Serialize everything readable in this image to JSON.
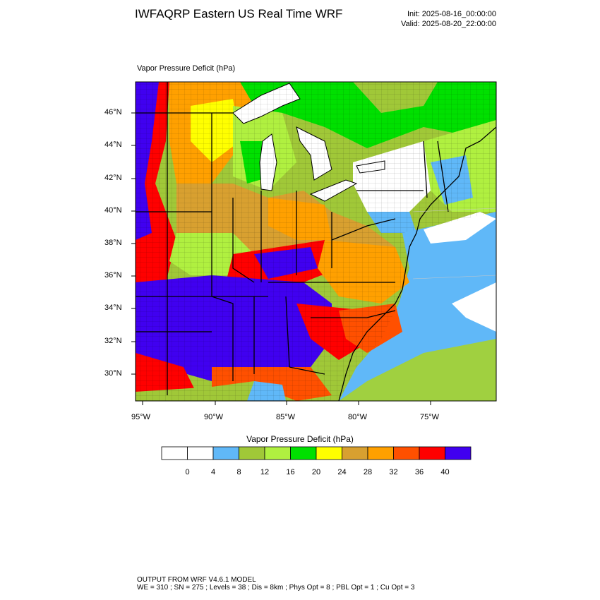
{
  "header": {
    "title": "IWFAQRP Eastern US Real Time WRF",
    "init": "Init: 2025-08-16_00:00:00",
    "valid": "Valid: 2025-08-20_22:00:00"
  },
  "map": {
    "field_label": "Vapor Pressure Deficit   (hPa)",
    "lat_labels": [
      "46°N",
      "44°N",
      "42°N",
      "40°N",
      "38°N",
      "36°N",
      "34°N",
      "32°N",
      "30°N"
    ],
    "lon_labels": [
      "95°W",
      "90°W",
      "85°W",
      "80°W",
      "75°W"
    ],
    "colors": {
      "lake": "#ffffff",
      "ocean_far": "#a0d040",
      "ocean_near": "#60b8f8"
    }
  },
  "colorbar": {
    "title": "Vapor Pressure Deficit  (hPa)",
    "colors": [
      "#ffffff",
      "#ffffff",
      "#60b8f8",
      "#a0c838",
      "#b0f040",
      "#00e000",
      "#ffff00",
      "#d8a030",
      "#ffa000",
      "#ff5000",
      "#ff0000",
      "#4000f0"
    ],
    "tick_labels": [
      "0",
      "4",
      "8",
      "12",
      "16",
      "20",
      "24",
      "28",
      "32",
      "36",
      "40"
    ]
  },
  "footer": {
    "line1": "OUTPUT FROM WRF V4.6.1 MODEL",
    "line2": "WE = 310 ; SN = 275 ; Levels = 38 ; Dis = 8km ; Phys Opt = 8 ; PBL Opt = 1 ; Cu Opt = 3"
  }
}
